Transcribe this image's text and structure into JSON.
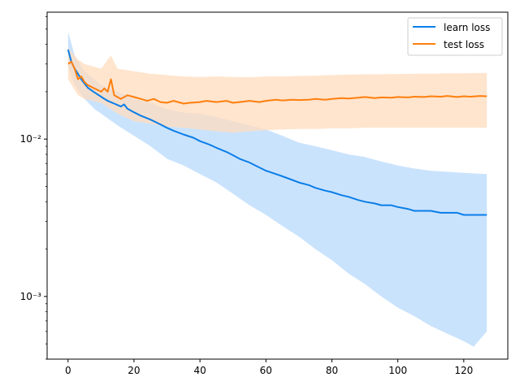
{
  "chart_data": {
    "type": "line",
    "title": "",
    "xlabel": "",
    "ylabel": "",
    "xlim": [
      -6.35,
      133.35
    ],
    "ylim": [
      0.0004,
      0.064
    ],
    "yscale": "log",
    "grid": false,
    "legend_position": "top-right",
    "xticks": [
      0,
      20,
      40,
      60,
      80,
      100,
      120
    ],
    "xtick_labels": [
      "0",
      "20",
      "40",
      "60",
      "80",
      "100",
      "120"
    ],
    "yticks": [
      0.001,
      0.01
    ],
    "ytick_labels": [
      "10⁻³",
      "10⁻²"
    ],
    "series": [
      {
        "name": "learn loss",
        "color": "#0a7ee8",
        "band_color": "#b8dafc",
        "points": [
          [
            0,
            0.037
          ],
          [
            1,
            0.031
          ],
          [
            2,
            0.028
          ],
          [
            3,
            0.026
          ],
          [
            4,
            0.024
          ],
          [
            5,
            0.0225
          ],
          [
            6,
            0.0212
          ],
          [
            8,
            0.0198
          ],
          [
            10,
            0.0186
          ],
          [
            12,
            0.0175
          ],
          [
            14,
            0.0168
          ],
          [
            16,
            0.0161
          ],
          [
            17,
            0.0166
          ],
          [
            18,
            0.0156
          ],
          [
            20,
            0.0148
          ],
          [
            22,
            0.0141
          ],
          [
            25,
            0.0133
          ],
          [
            28,
            0.0124
          ],
          [
            30,
            0.0118
          ],
          [
            32,
            0.0113
          ],
          [
            35,
            0.0107
          ],
          [
            38,
            0.0102
          ],
          [
            40,
            0.0097
          ],
          [
            43,
            0.0092
          ],
          [
            45,
            0.0088
          ],
          [
            48,
            0.0083
          ],
          [
            50,
            0.0079
          ],
          [
            52,
            0.0075
          ],
          [
            55,
            0.0071
          ],
          [
            58,
            0.0066
          ],
          [
            60,
            0.0063
          ],
          [
            63,
            0.006
          ],
          [
            65,
            0.0058
          ],
          [
            68,
            0.0055
          ],
          [
            70,
            0.0053
          ],
          [
            73,
            0.0051
          ],
          [
            75,
            0.0049
          ],
          [
            78,
            0.0047
          ],
          [
            80,
            0.0046
          ],
          [
            83,
            0.0044
          ],
          [
            85,
            0.0043
          ],
          [
            88,
            0.0041
          ],
          [
            90,
            0.004
          ],
          [
            93,
            0.0039
          ],
          [
            95,
            0.0038
          ],
          [
            98,
            0.0038
          ],
          [
            100,
            0.0037
          ],
          [
            103,
            0.0036
          ],
          [
            105,
            0.0035
          ],
          [
            108,
            0.0035
          ],
          [
            110,
            0.0035
          ],
          [
            113,
            0.0034
          ],
          [
            115,
            0.0034
          ],
          [
            118,
            0.0034
          ],
          [
            120,
            0.0033
          ],
          [
            122,
            0.0033
          ],
          [
            125,
            0.0033
          ],
          [
            127,
            0.0033
          ]
        ],
        "band_upper": [
          [
            0,
            0.048
          ],
          [
            2,
            0.034
          ],
          [
            5,
            0.027
          ],
          [
            8,
            0.024
          ],
          [
            10,
            0.022
          ],
          [
            15,
            0.02
          ],
          [
            20,
            0.018
          ],
          [
            25,
            0.017
          ],
          [
            30,
            0.0155
          ],
          [
            35,
            0.0148
          ],
          [
            40,
            0.0145
          ],
          [
            45,
            0.0138
          ],
          [
            50,
            0.013
          ],
          [
            55,
            0.0122
          ],
          [
            60,
            0.0115
          ],
          [
            65,
            0.0105
          ],
          [
            70,
            0.0095
          ],
          [
            75,
            0.009
          ],
          [
            80,
            0.0085
          ],
          [
            85,
            0.008
          ],
          [
            90,
            0.0077
          ],
          [
            95,
            0.0072
          ],
          [
            100,
            0.0068
          ],
          [
            105,
            0.0065
          ],
          [
            110,
            0.0063
          ],
          [
            115,
            0.0062
          ],
          [
            120,
            0.0061
          ],
          [
            127,
            0.006
          ]
        ],
        "band_lower": [
          [
            0,
            0.029
          ],
          [
            2,
            0.022
          ],
          [
            5,
            0.018
          ],
          [
            8,
            0.0155
          ],
          [
            10,
            0.0145
          ],
          [
            15,
            0.0122
          ],
          [
            20,
            0.0105
          ],
          [
            25,
            0.009
          ],
          [
            30,
            0.0075
          ],
          [
            35,
            0.0068
          ],
          [
            40,
            0.006
          ],
          [
            45,
            0.0053
          ],
          [
            50,
            0.0045
          ],
          [
            55,
            0.0038
          ],
          [
            60,
            0.0033
          ],
          [
            65,
            0.0028
          ],
          [
            70,
            0.0024
          ],
          [
            75,
            0.002
          ],
          [
            80,
            0.0017
          ],
          [
            85,
            0.0014
          ],
          [
            90,
            0.0012
          ],
          [
            95,
            0.001
          ],
          [
            100,
            0.00085
          ],
          [
            105,
            0.00075
          ],
          [
            110,
            0.00065
          ],
          [
            115,
            0.00058
          ],
          [
            120,
            0.00052
          ],
          [
            123,
            0.00048
          ],
          [
            127,
            0.0006
          ]
        ]
      },
      {
        "name": "test loss",
        "color": "#ff7f0e",
        "band_color": "#ffdcbd",
        "points": [
          [
            0,
            0.03
          ],
          [
            1,
            0.031
          ],
          [
            2,
            0.028
          ],
          [
            3,
            0.024
          ],
          [
            4,
            0.025
          ],
          [
            5,
            0.023
          ],
          [
            6,
            0.022
          ],
          [
            8,
            0.021
          ],
          [
            10,
            0.02
          ],
          [
            11,
            0.021
          ],
          [
            12,
            0.02
          ],
          [
            13,
            0.024
          ],
          [
            14,
            0.019
          ],
          [
            16,
            0.018
          ],
          [
            18,
            0.019
          ],
          [
            20,
            0.0185
          ],
          [
            22,
            0.018
          ],
          [
            24,
            0.0175
          ],
          [
            26,
            0.018
          ],
          [
            28,
            0.0172
          ],
          [
            30,
            0.017
          ],
          [
            32,
            0.0175
          ],
          [
            35,
            0.0168
          ],
          [
            37,
            0.017
          ],
          [
            40,
            0.0172
          ],
          [
            42,
            0.0175
          ],
          [
            45,
            0.0172
          ],
          [
            48,
            0.0175
          ],
          [
            50,
            0.017
          ],
          [
            52,
            0.0172
          ],
          [
            55,
            0.0175
          ],
          [
            58,
            0.0172
          ],
          [
            60,
            0.0175
          ],
          [
            63,
            0.0178
          ],
          [
            65,
            0.0176
          ],
          [
            68,
            0.0178
          ],
          [
            70,
            0.0177
          ],
          [
            73,
            0.0178
          ],
          [
            75,
            0.018
          ],
          [
            78,
            0.0178
          ],
          [
            80,
            0.018
          ],
          [
            83,
            0.0182
          ],
          [
            85,
            0.0181
          ],
          [
            88,
            0.0183
          ],
          [
            90,
            0.0185
          ],
          [
            93,
            0.0182
          ],
          [
            95,
            0.0184
          ],
          [
            98,
            0.0183
          ],
          [
            100,
            0.0185
          ],
          [
            103,
            0.0184
          ],
          [
            105,
            0.0186
          ],
          [
            108,
            0.0185
          ],
          [
            110,
            0.0187
          ],
          [
            113,
            0.0186
          ],
          [
            115,
            0.0188
          ],
          [
            118,
            0.0185
          ],
          [
            120,
            0.0187
          ],
          [
            122,
            0.0186
          ],
          [
            125,
            0.0188
          ],
          [
            127,
            0.0187
          ]
        ],
        "band_upper": [
          [
            0,
            0.038
          ],
          [
            3,
            0.032
          ],
          [
            5,
            0.03
          ],
          [
            10,
            0.028
          ],
          [
            13,
            0.034
          ],
          [
            15,
            0.028
          ],
          [
            20,
            0.027
          ],
          [
            25,
            0.026
          ],
          [
            30,
            0.0255
          ],
          [
            35,
            0.025
          ],
          [
            40,
            0.0248
          ],
          [
            45,
            0.025
          ],
          [
            50,
            0.0248
          ],
          [
            55,
            0.0247
          ],
          [
            60,
            0.025
          ],
          [
            65,
            0.025
          ],
          [
            70,
            0.0252
          ],
          [
            75,
            0.0253
          ],
          [
            80,
            0.0255
          ],
          [
            85,
            0.0257
          ],
          [
            90,
            0.0258
          ],
          [
            95,
            0.0258
          ],
          [
            100,
            0.0259
          ],
          [
            105,
            0.026
          ],
          [
            110,
            0.026
          ],
          [
            115,
            0.0262
          ],
          [
            120,
            0.0262
          ],
          [
            127,
            0.0263
          ]
        ],
        "band_lower": [
          [
            0,
            0.024
          ],
          [
            3,
            0.019
          ],
          [
            5,
            0.018
          ],
          [
            10,
            0.017
          ],
          [
            15,
            0.0145
          ],
          [
            20,
            0.013
          ],
          [
            25,
            0.0125
          ],
          [
            30,
            0.012
          ],
          [
            35,
            0.0118
          ],
          [
            40,
            0.0115
          ],
          [
            45,
            0.0112
          ],
          [
            50,
            0.011
          ],
          [
            55,
            0.0112
          ],
          [
            60,
            0.0114
          ],
          [
            65,
            0.0115
          ],
          [
            70,
            0.0116
          ],
          [
            75,
            0.0116
          ],
          [
            80,
            0.0117
          ],
          [
            85,
            0.0117
          ],
          [
            90,
            0.0118
          ],
          [
            95,
            0.0118
          ],
          [
            100,
            0.0118
          ],
          [
            105,
            0.0118
          ],
          [
            110,
            0.0118
          ],
          [
            115,
            0.0118
          ],
          [
            120,
            0.0118
          ],
          [
            127,
            0.0118
          ]
        ]
      }
    ]
  }
}
